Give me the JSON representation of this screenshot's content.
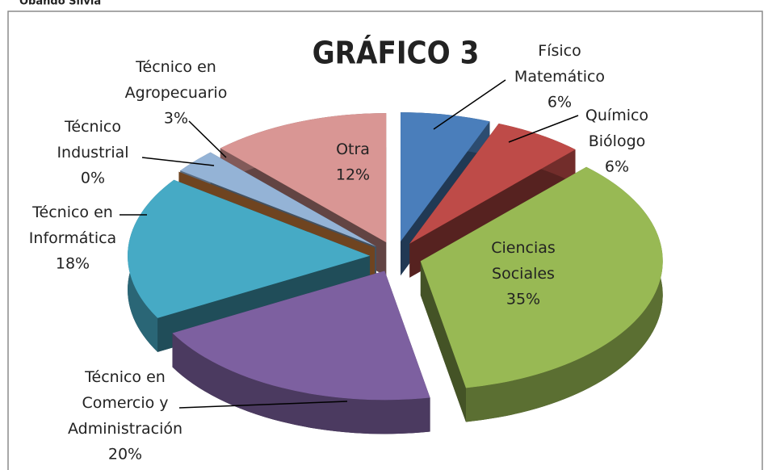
{
  "caption": "Obando Silvia",
  "chart_data": {
    "type": "pie",
    "title": "GRÁFICO 3",
    "categories": [
      "Físico Matemático",
      "Químico Biólogo",
      "Ciencias Sociales",
      "Técnico en Comercio y Administración",
      "Técnico en Informática",
      "Técnico Industrial",
      "Técnico en Agropecuario",
      "Otra"
    ],
    "values": [
      6,
      6,
      35,
      20,
      18,
      0,
      3,
      12
    ],
    "value_labels": [
      "6%",
      "6%",
      "35%",
      "20%",
      "18%",
      "0%",
      "3%",
      "12%"
    ],
    "colors": [
      "#4a7ebb",
      "#be4b48",
      "#98b954",
      "#7d60a0",
      "#46aac5",
      "#f79646",
      "#94b3d6",
      "#d99694"
    ]
  }
}
